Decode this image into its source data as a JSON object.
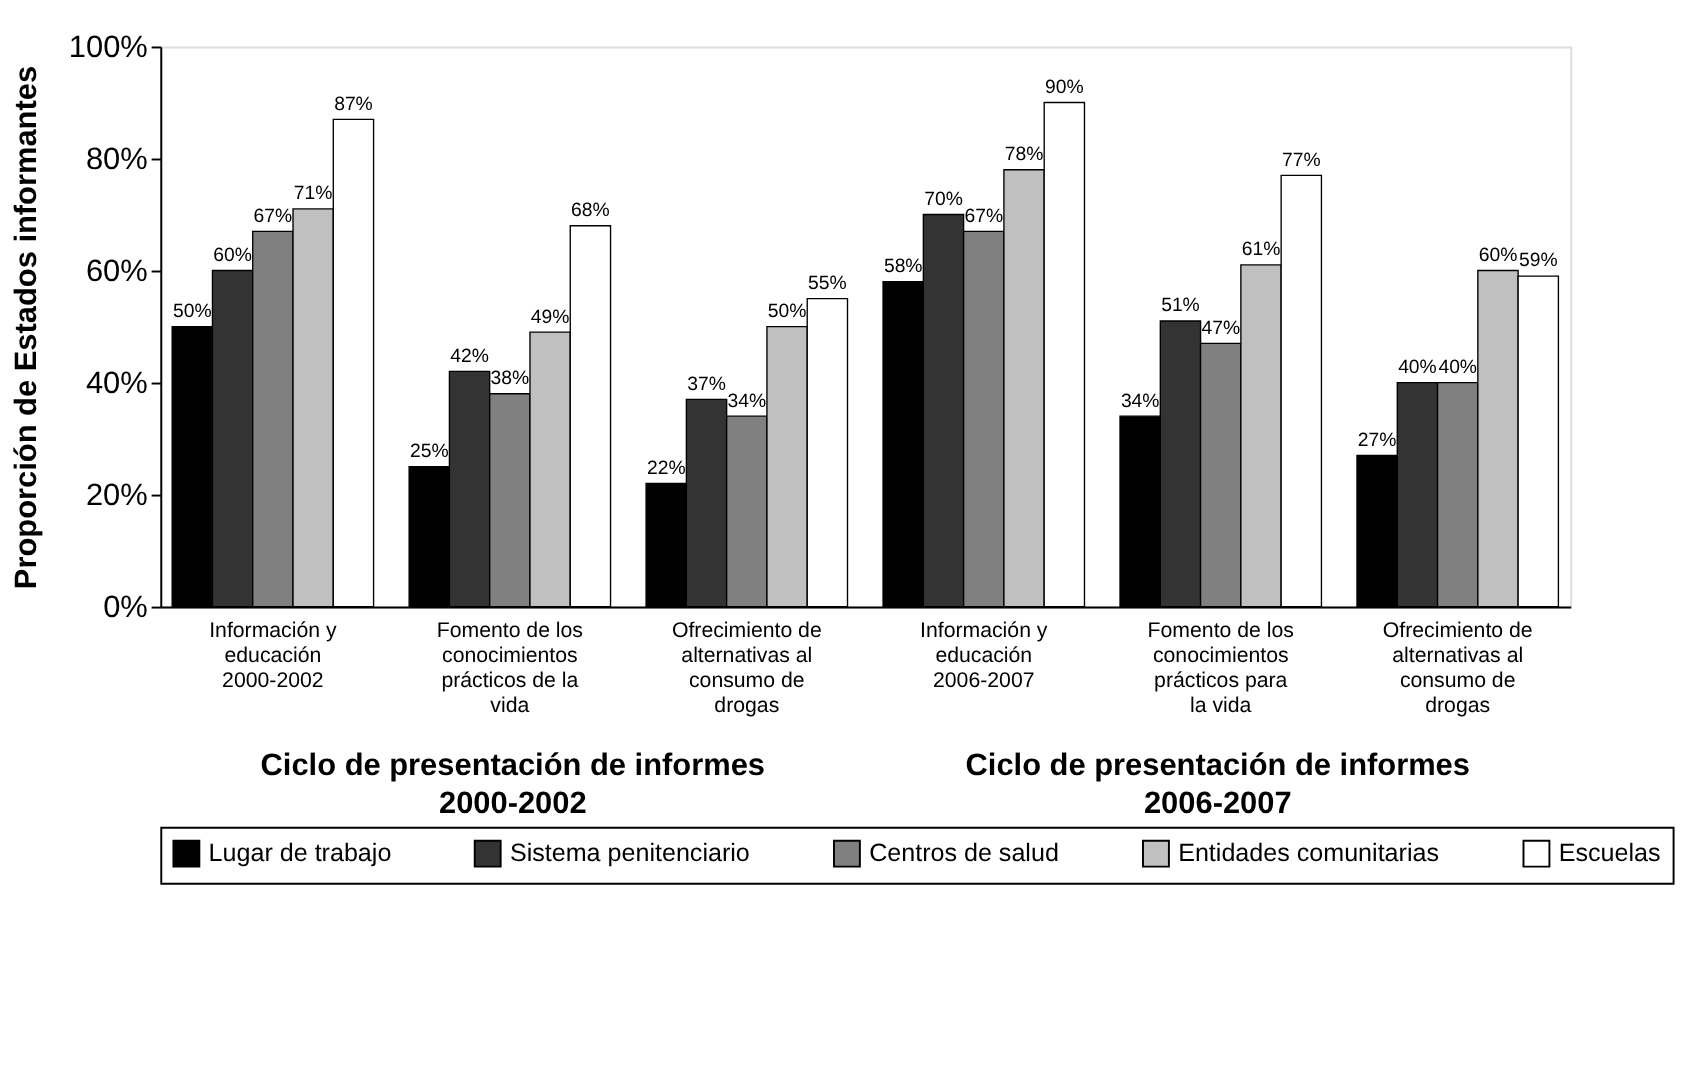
{
  "chart_data": {
    "type": "bar",
    "ylabel": "Proporción de Estados informantes",
    "categories": [
      "Información y educación 2000-2002",
      "Fomento de los conocimientos prácticos de la vida",
      "Ofrecimiento de alternativas al consumo de drogas",
      "Información y educación 2006-2007",
      "Fomento de los conocimientos prácticos para la vida",
      "Ofrecimiento de alternativas al consumo de drogas"
    ],
    "series": [
      {
        "name": "Lugar de trabajo",
        "color": "#000000",
        "values": [
          50,
          25,
          22,
          58,
          34,
          27
        ],
        "value_labels": [
          "50%",
          "25%",
          "22%",
          "58%",
          "34%",
          "27%"
        ]
      },
      {
        "name": "Sistema penitenciario",
        "color": "#333333",
        "values": [
          60,
          42,
          37,
          70,
          51,
          40
        ],
        "value_labels": [
          "60%",
          "42%",
          "37%",
          "70%",
          "51%",
          "40%"
        ]
      },
      {
        "name": "Centros de salud",
        "color": "#808080",
        "values": [
          67,
          38,
          34,
          67,
          47,
          40
        ],
        "value_labels": [
          "67%",
          "38%",
          "34%",
          "67%",
          "47%",
          "40%"
        ]
      },
      {
        "name": "Entidades comunitarias",
        "color": "#c0c0c0",
        "values": [
          71,
          49,
          50,
          78,
          61,
          60
        ],
        "value_labels": [
          "71%",
          "49%",
          "50%",
          "78%",
          "61%",
          "60%"
        ]
      },
      {
        "name": "Escuelas",
        "color": "#ffffff",
        "values": [
          87,
          68,
          55,
          90,
          77,
          59
        ],
        "value_labels": [
          "87%",
          "68%",
          "55%",
          "90%",
          "77%",
          "59%"
        ]
      }
    ],
    "ylim": [
      0,
      100
    ],
    "yticks": [
      {
        "value": 0,
        "label": "0%"
      },
      {
        "value": 20,
        "label": "20%"
      },
      {
        "value": 40,
        "label": "40%"
      },
      {
        "value": 60,
        "label": "60%"
      },
      {
        "value": 80,
        "label": "80%"
      },
      {
        "value": 100,
        "label": "100%"
      }
    ],
    "annotations": [
      "Ciclo de presentación de informes 2000-2002",
      "Ciclo de presentación de informes 2006-2007"
    ],
    "grid": false,
    "legend": "bottom"
  }
}
